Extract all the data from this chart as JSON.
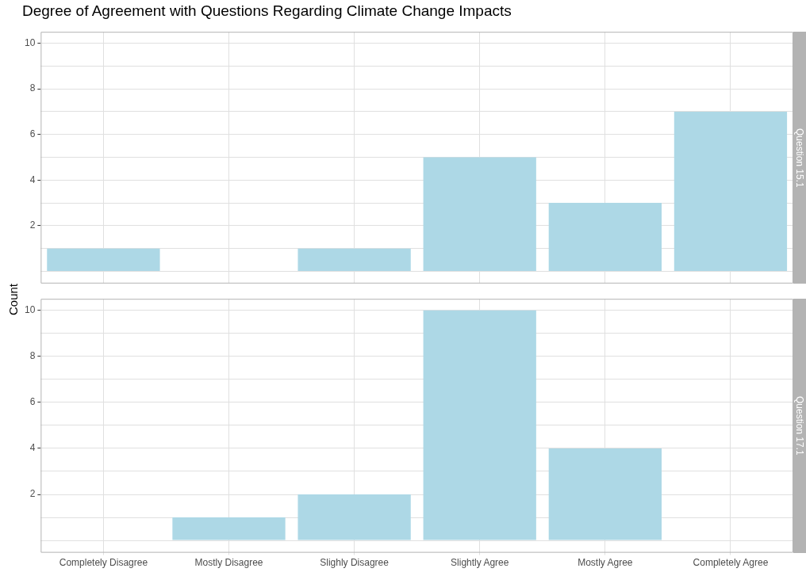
{
  "chart_data": [
    {
      "type": "bar",
      "title": "Degree of Agreement with Questions Regarding Climate Change Impacts",
      "subtitle": "Question 15.1",
      "ylabel": "Count",
      "categories": [
        null,
        null,
        null,
        null,
        null,
        null
      ],
      "values": [
        1,
        0,
        1,
        5,
        3,
        7
      ],
      "color": "#add8e6",
      "ylim": [
        -0.5,
        10.5
      ],
      "yticks": [
        {
          "value": 0,
          "label": null
        },
        {
          "value": 1,
          "label": null
        },
        2,
        {
          "value": 3,
          "label": null
        },
        4,
        {
          "value": 5,
          "label": null
        },
        6,
        {
          "value": 7,
          "label": null
        },
        8,
        {
          "value": 9,
          "label": null
        },
        10
      ],
      "grid": true,
      "legend": false,
      "tick_labels": "y"
    },
    {
      "type": "bar",
      "subtitle": "Question 17.1",
      "categories": [
        "Completely Disagree",
        "Mostly Disagree",
        "Slighly Disagree",
        "Slightly Agree",
        "Mostly Agree",
        "Completely Agree"
      ],
      "values": [
        0,
        1,
        2,
        10,
        4,
        0
      ],
      "color": "#add8e6",
      "ylim": [
        -0.5,
        10.5
      ],
      "yticks": [
        {
          "value": 0,
          "label": null
        },
        {
          "value": 1,
          "label": null
        },
        2,
        {
          "value": 3,
          "label": null
        },
        4,
        {
          "value": 5,
          "label": null
        },
        6,
        {
          "value": 7,
          "label": null
        },
        8,
        {
          "value": 9,
          "label": null
        },
        10
      ],
      "grid": true,
      "legend": false
    }
  ]
}
